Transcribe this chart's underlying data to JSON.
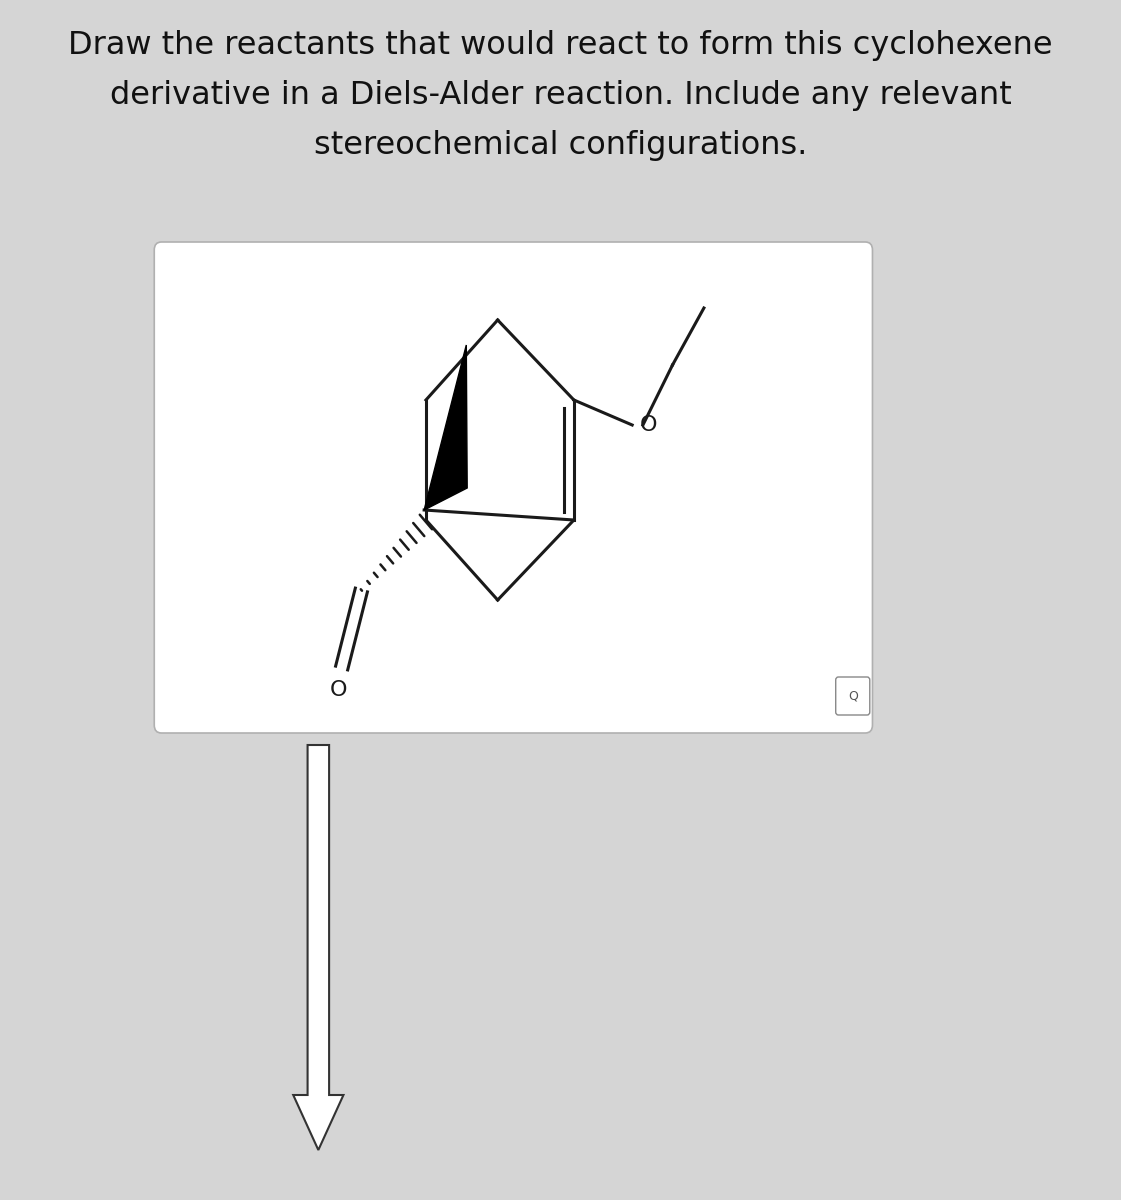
{
  "title_line1": "Draw the reactants that would react to form this cyclohexene",
  "title_line2": "derivative in a Diels-Alder reaction. Include any relevant",
  "title_line3": "stereochemical configurations.",
  "bg_color": "#d5d5d5",
  "box_bg": "#ffffff",
  "title_fontsize": 23,
  "mol_color": "#1a1a1a",
  "arrow_color": "#2a2a2a"
}
